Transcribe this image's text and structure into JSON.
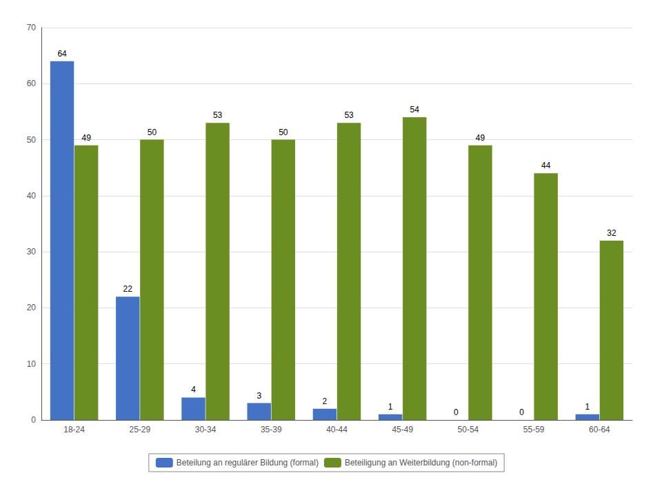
{
  "chart_data": {
    "type": "bar",
    "categories": [
      "18-24",
      "25-29",
      "30-34",
      "35-39",
      "40-44",
      "45-49",
      "50-54",
      "55-59",
      "60-64"
    ],
    "series": [
      {
        "name": "Beteilung an regulärer Bildung (formal)",
        "color": "#4472C4",
        "values": [
          64,
          22,
          4,
          3,
          2,
          1,
          0,
          0,
          1
        ]
      },
      {
        "name": "Beteiligung an Weiterbildung (non-formal)",
        "color": "#6B8E23",
        "values": [
          49,
          50,
          53,
          50,
          53,
          54,
          49,
          44,
          32
        ]
      }
    ],
    "ylim": [
      0,
      70
    ],
    "yticks": [
      0,
      10,
      20,
      30,
      40,
      50,
      60,
      70
    ],
    "grid": true,
    "legend": "bottom",
    "data_labels": true
  }
}
